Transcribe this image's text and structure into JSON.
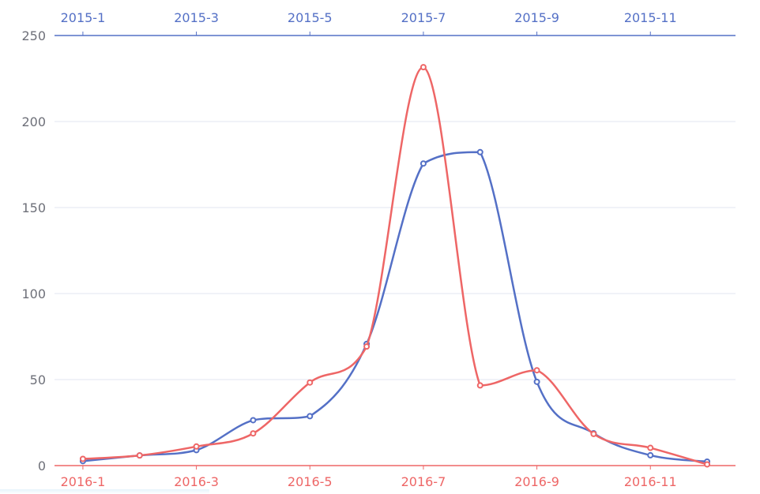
{
  "chart_data": {
    "type": "line",
    "x_top": {
      "categories": [
        "2015-1",
        "2015-2",
        "2015-3",
        "2015-4",
        "2015-5",
        "2015-6",
        "2015-7",
        "2015-8",
        "2015-9",
        "2015-10",
        "2015-11",
        "2015-12"
      ],
      "shown_labels": [
        "2015-1",
        "2015-3",
        "2015-5",
        "2015-7",
        "2015-9",
        "2015-11"
      ],
      "color": "#5470c6"
    },
    "x_bottom": {
      "categories": [
        "2016-1",
        "2016-2",
        "2016-3",
        "2016-4",
        "2016-5",
        "2016-6",
        "2016-7",
        "2016-8",
        "2016-9",
        "2016-10",
        "2016-11",
        "2016-12"
      ],
      "shown_labels": [
        "2016-1",
        "2016-3",
        "2016-5",
        "2016-7",
        "2016-9",
        "2016-11"
      ],
      "color": "#ee6666"
    },
    "y": {
      "ylim": [
        0,
        250
      ],
      "ticks": [
        "0",
        "50",
        "100",
        "150",
        "200",
        "250"
      ]
    },
    "series": [
      {
        "axis": "top",
        "color": "#5470c6",
        "values": [
          2.6,
          5.9,
          9.0,
          26.4,
          28.7,
          70.7,
          175.6,
          182.2,
          48.7,
          18.8,
          6.0,
          2.3
        ]
      },
      {
        "axis": "bottom",
        "color": "#ee6666",
        "values": [
          3.9,
          5.9,
          11.1,
          18.7,
          48.3,
          69.2,
          231.6,
          46.6,
          55.4,
          18.4,
          10.3,
          0.7
        ]
      }
    ],
    "grid": true,
    "smooth": true
  }
}
